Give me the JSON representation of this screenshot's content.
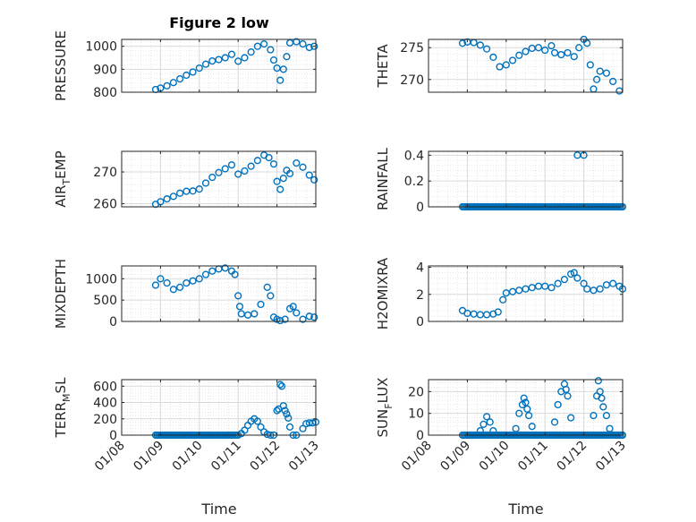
{
  "figure_title": "Figure 2 low",
  "chart_data": [
    {
      "type": "scatter",
      "ylabel": "PRESSURE",
      "title": "Figure 2 low",
      "xlim": [
        "01/08",
        "01/13"
      ],
      "ylim": [
        800,
        1030
      ],
      "yticks": [
        800,
        900,
        1000
      ],
      "grid": "on",
      "marker_color": "#0072BD",
      "points": [
        [
          "01/08 21:00",
          812
        ],
        [
          "01/09 00:00",
          818
        ],
        [
          "01/09 04:00",
          828
        ],
        [
          "01/09 08:00",
          842
        ],
        [
          "01/09 12:00",
          858
        ],
        [
          "01/09 16:00",
          874
        ],
        [
          "01/09 20:00",
          888
        ],
        [
          "01/10 00:00",
          905
        ],
        [
          "01/10 04:00",
          922
        ],
        [
          "01/10 08:00",
          936
        ],
        [
          "01/10 12:00",
          942
        ],
        [
          "01/10 16:00",
          950
        ],
        [
          "01/10 20:00",
          965
        ],
        [
          "01/11 00:00",
          935
        ],
        [
          "01/11 04:00",
          950
        ],
        [
          "01/11 08:00",
          975
        ],
        [
          "01/11 12:00",
          1000
        ],
        [
          "01/11 16:00",
          1010
        ],
        [
          "01/11 20:00",
          985
        ],
        [
          "01/11 22:00",
          940
        ],
        [
          "01/12 00:00",
          905
        ],
        [
          "01/12 02:00",
          852
        ],
        [
          "01/12 04:00",
          900
        ],
        [
          "01/12 06:00",
          955
        ],
        [
          "01/12 08:00",
          1015
        ],
        [
          "01/12 12:00",
          1020
        ],
        [
          "01/12 16:00",
          1010
        ],
        [
          "01/12 20:00",
          995
        ],
        [
          "01/12 23:00",
          1000
        ]
      ]
    },
    {
      "type": "scatter",
      "ylabel": "THETA",
      "xlim": [
        "01/08",
        "01/13"
      ],
      "ylim": [
        268,
        276.3
      ],
      "yticks": [
        270,
        275
      ],
      "grid": "on",
      "marker_color": "#0072BD",
      "points": [
        [
          "01/08 21:00",
          275.7
        ],
        [
          "01/09 00:00",
          275.9
        ],
        [
          "01/09 04:00",
          275.8
        ],
        [
          "01/09 08:00",
          275.4
        ],
        [
          "01/09 12:00",
          274.8
        ],
        [
          "01/09 16:00",
          273.5
        ],
        [
          "01/09 20:00",
          272.0
        ],
        [
          "01/10 00:00",
          272.3
        ],
        [
          "01/10 04:00",
          273.0
        ],
        [
          "01/10 08:00",
          273.8
        ],
        [
          "01/10 12:00",
          274.4
        ],
        [
          "01/10 16:00",
          274.9
        ],
        [
          "01/10 20:00",
          275.0
        ],
        [
          "01/11 00:00",
          274.6
        ],
        [
          "01/11 04:00",
          275.3
        ],
        [
          "01/11 06:00",
          274.2
        ],
        [
          "01/11 10:00",
          273.9
        ],
        [
          "01/11 14:00",
          274.2
        ],
        [
          "01/11 18:00",
          273.6
        ],
        [
          "01/11 21:00",
          275.0
        ],
        [
          "01/12 00:00",
          276.3
        ],
        [
          "01/12 02:00",
          275.7
        ],
        [
          "01/12 04:00",
          272.3
        ],
        [
          "01/12 06:00",
          268.5
        ],
        [
          "01/12 08:00",
          270.0
        ],
        [
          "01/12 10:00",
          271.3
        ],
        [
          "01/12 14:00",
          271.0
        ],
        [
          "01/12 18:00",
          269.7
        ],
        [
          "01/12 22:00",
          268.2
        ]
      ]
    },
    {
      "type": "scatter",
      "ylabel_main": "AIR",
      "ylabel_sub": "T",
      "ylabel_tail": "EMP",
      "xlim": [
        "01/08",
        "01/13"
      ],
      "ylim": [
        259,
        276.5
      ],
      "yticks": [
        260,
        270
      ],
      "grid": "on",
      "marker_color": "#0072BD",
      "points": [
        [
          "01/08 21:00",
          259.8
        ],
        [
          "01/09 00:00",
          260.6
        ],
        [
          "01/09 04:00",
          261.5
        ],
        [
          "01/09 08:00",
          262.3
        ],
        [
          "01/09 12:00",
          263.3
        ],
        [
          "01/09 16:00",
          263.9
        ],
        [
          "01/09 20:00",
          264.0
        ],
        [
          "01/10 00:00",
          264.6
        ],
        [
          "01/10 04:00",
          266.5
        ],
        [
          "01/10 08:00",
          268.3
        ],
        [
          "01/10 12:00",
          269.8
        ],
        [
          "01/10 16:00",
          271.0
        ],
        [
          "01/10 20:00",
          272.2
        ],
        [
          "01/11 00:00",
          269.3
        ],
        [
          "01/11 04:00",
          270.3
        ],
        [
          "01/11 08:00",
          271.8
        ],
        [
          "01/11 12:00",
          273.6
        ],
        [
          "01/11 16:00",
          275.3
        ],
        [
          "01/11 19:00",
          274.5
        ],
        [
          "01/11 22:00",
          272.5
        ],
        [
          "01/12 00:00",
          267.0
        ],
        [
          "01/12 02:00",
          264.5
        ],
        [
          "01/12 04:00",
          268.0
        ],
        [
          "01/12 06:00",
          270.5
        ],
        [
          "01/12 08:00",
          269.5
        ],
        [
          "01/12 12:00",
          272.8
        ],
        [
          "01/12 16:00",
          271.5
        ],
        [
          "01/12 20:00",
          269.0
        ],
        [
          "01/12 23:00",
          267.5
        ]
      ]
    },
    {
      "type": "scatter",
      "ylabel": "RAINFALL",
      "xlim": [
        "01/08",
        "01/13"
      ],
      "ylim": [
        0,
        0.43
      ],
      "yticks": [
        0,
        0.2,
        0.4
      ],
      "ytick_labels": [
        "0",
        "0.2",
        "0.4"
      ],
      "grid": "on",
      "marker_color": "#0072BD",
      "baseline_range": [
        "01/08 21:00",
        "01/13 00:00",
        0
      ],
      "points": [
        [
          "01/11 20:00",
          0.4
        ],
        [
          "01/12 00:00",
          0.4
        ]
      ]
    },
    {
      "type": "scatter",
      "ylabel": "MIXDEPTH",
      "xlim": [
        "01/08",
        "01/13"
      ],
      "ylim": [
        0,
        1300
      ],
      "yticks": [
        0,
        500,
        1000
      ],
      "grid": "on",
      "marker_color": "#0072BD",
      "points": [
        [
          "01/08 21:00",
          850
        ],
        [
          "01/09 00:00",
          1000
        ],
        [
          "01/09 04:00",
          900
        ],
        [
          "01/09 08:00",
          750
        ],
        [
          "01/09 12:00",
          800
        ],
        [
          "01/09 16:00",
          900
        ],
        [
          "01/09 20:00",
          950
        ],
        [
          "01/10 00:00",
          1000
        ],
        [
          "01/10 04:00",
          1100
        ],
        [
          "01/10 08:00",
          1180
        ],
        [
          "01/10 12:00",
          1230
        ],
        [
          "01/10 16:00",
          1250
        ],
        [
          "01/10 20:00",
          1180
        ],
        [
          "01/10 22:00",
          1100
        ],
        [
          "01/11 00:00",
          600
        ],
        [
          "01/11 01:00",
          350
        ],
        [
          "01/11 02:00",
          180
        ],
        [
          "01/11 06:00",
          150
        ],
        [
          "01/11 10:00",
          180
        ],
        [
          "01/11 14:00",
          400
        ],
        [
          "01/11 18:00",
          800
        ],
        [
          "01/11 20:00",
          600
        ],
        [
          "01/11 22:00",
          100
        ],
        [
          "01/12 00:00",
          50
        ],
        [
          "01/12 02:00",
          20
        ],
        [
          "01/12 05:00",
          50
        ],
        [
          "01/12 08:00",
          300
        ],
        [
          "01/12 10:00",
          350
        ],
        [
          "01/12 12:00",
          200
        ],
        [
          "01/12 16:00",
          50
        ],
        [
          "01/12 20:00",
          120
        ],
        [
          "01/12 23:00",
          100
        ]
      ]
    },
    {
      "type": "scatter",
      "ylabel": "H2OMIXRA",
      "xlim": [
        "01/08",
        "01/13"
      ],
      "ylim": [
        0,
        4.1
      ],
      "yticks": [
        0,
        2,
        4
      ],
      "grid": "on",
      "marker_color": "#0072BD",
      "points": [
        [
          "01/08 21:00",
          0.8
        ],
        [
          "01/09 00:00",
          0.6
        ],
        [
          "01/09 04:00",
          0.55
        ],
        [
          "01/09 08:00",
          0.5
        ],
        [
          "01/09 12:00",
          0.5
        ],
        [
          "01/09 16:00",
          0.55
        ],
        [
          "01/09 19:00",
          0.7
        ],
        [
          "01/09 22:00",
          1.6
        ],
        [
          "01/10 00:00",
          2.1
        ],
        [
          "01/10 04:00",
          2.2
        ],
        [
          "01/10 08:00",
          2.3
        ],
        [
          "01/10 12:00",
          2.4
        ],
        [
          "01/10 16:00",
          2.5
        ],
        [
          "01/10 20:00",
          2.6
        ],
        [
          "01/11 00:00",
          2.6
        ],
        [
          "01/11 04:00",
          2.5
        ],
        [
          "01/11 08:00",
          2.8
        ],
        [
          "01/11 12:00",
          3.1
        ],
        [
          "01/11 16:00",
          3.5
        ],
        [
          "01/11 18:00",
          3.6
        ],
        [
          "01/11 20:00",
          3.2
        ],
        [
          "01/12 00:00",
          2.8
        ],
        [
          "01/12 02:00",
          2.4
        ],
        [
          "01/12 06:00",
          2.3
        ],
        [
          "01/12 10:00",
          2.4
        ],
        [
          "01/12 14:00",
          2.7
        ],
        [
          "01/12 18:00",
          2.8
        ],
        [
          "01/12 22:00",
          2.6
        ],
        [
          "01/13 00:00",
          2.4
        ]
      ]
    },
    {
      "type": "scatter",
      "ylabel_main": "TERR",
      "ylabel_sub": "M",
      "ylabel_tail": "SL",
      "xlim": [
        "01/08",
        "01/13"
      ],
      "ylim": [
        0,
        680
      ],
      "yticks": [
        0,
        200,
        400,
        600
      ],
      "grid": "on",
      "marker_color": "#0072BD",
      "baseline_range": [
        "01/08 21:00",
        "01/11 00:00",
        0
      ],
      "points": [
        [
          "01/11 02:00",
          20
        ],
        [
          "01/11 04:00",
          60
        ],
        [
          "01/11 06:00",
          120
        ],
        [
          "01/11 08:00",
          170
        ],
        [
          "01/11 10:00",
          200
        ],
        [
          "01/11 12:00",
          170
        ],
        [
          "01/11 14:00",
          100
        ],
        [
          "01/11 16:00",
          40
        ],
        [
          "01/11 18:00",
          10
        ],
        [
          "01/11 20:00",
          0
        ],
        [
          "01/11 22:00",
          0
        ],
        [
          "01/12 00:00",
          300
        ],
        [
          "01/12 01:00",
          320
        ],
        [
          "01/12 02:00",
          620
        ],
        [
          "01/12 03:00",
          600
        ],
        [
          "01/12 04:00",
          360
        ],
        [
          "01/12 05:00",
          300
        ],
        [
          "01/12 06:00",
          260
        ],
        [
          "01/12 07:00",
          210
        ],
        [
          "01/12 08:00",
          100
        ],
        [
          "01/12 10:00",
          0
        ],
        [
          "01/12 12:00",
          0
        ],
        [
          "01/12 16:00",
          80
        ],
        [
          "01/12 18:00",
          140
        ],
        [
          "01/12 20:00",
          150
        ],
        [
          "01/12 22:00",
          150
        ],
        [
          "01/13 00:00",
          160
        ]
      ]
    },
    {
      "type": "scatter",
      "ylabel_main": "SUN",
      "ylabel_sub": "F",
      "ylabel_tail": "LUX",
      "xlim": [
        "01/08",
        "01/13"
      ],
      "ylim": [
        0,
        25.5
      ],
      "yticks": [
        0,
        10,
        20
      ],
      "grid": "on",
      "marker_color": "#0072BD",
      "baseline_range": [
        "01/08 21:00",
        "01/13 00:00",
        0
      ],
      "points": [
        [
          "01/09 08:00",
          2
        ],
        [
          "01/09 10:00",
          5
        ],
        [
          "01/09 12:00",
          8.5
        ],
        [
          "01/09 14:00",
          6
        ],
        [
          "01/09 16:00",
          2
        ],
        [
          "01/10 06:00",
          3
        ],
        [
          "01/10 08:00",
          10
        ],
        [
          "01/10 10:00",
          14
        ],
        [
          "01/10 11:00",
          17
        ],
        [
          "01/10 12:00",
          15
        ],
        [
          "01/10 13:00",
          12
        ],
        [
          "01/10 14:00",
          9
        ],
        [
          "01/10 16:00",
          4
        ],
        [
          "01/11 06:00",
          6
        ],
        [
          "01/11 08:00",
          14
        ],
        [
          "01/11 10:00",
          20
        ],
        [
          "01/11 12:00",
          23.5
        ],
        [
          "01/11 13:00",
          21
        ],
        [
          "01/11 14:00",
          18
        ],
        [
          "01/11 16:00",
          8
        ],
        [
          "01/12 06:00",
          9
        ],
        [
          "01/12 08:00",
          18
        ],
        [
          "01/12 09:00",
          25
        ],
        [
          "01/12 10:00",
          20
        ],
        [
          "01/12 11:00",
          17
        ],
        [
          "01/12 12:00",
          13
        ],
        [
          "01/12 14:00",
          9
        ],
        [
          "01/12 16:00",
          3
        ]
      ]
    }
  ],
  "xticks": [
    "01/08",
    "01/09",
    "01/10",
    "01/11",
    "01/12",
    "01/13"
  ],
  "xlabel_left": "Time",
  "xlabel_right": "Time"
}
